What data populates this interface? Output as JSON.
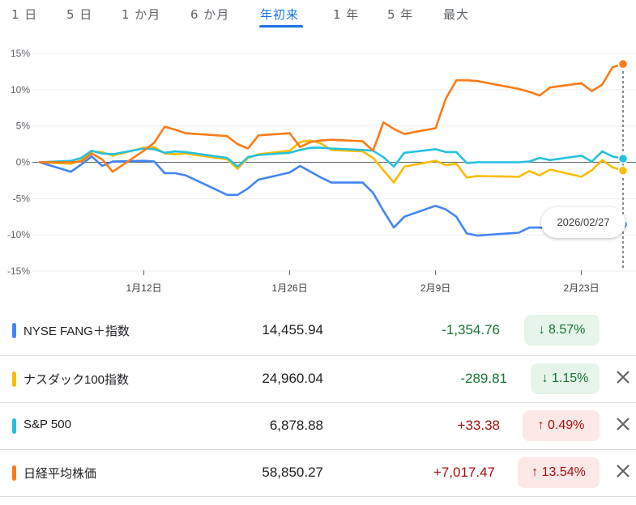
{
  "range_tabs": [
    "1 日",
    "5 日",
    "1 か月",
    "6 か月",
    "年初来",
    "1 年",
    "5 年",
    "最大"
  ],
  "active_tab": "年初来",
  "tooltip_date": "2026/02/27",
  "colors": {
    "NYSE FANG+指数": "#4285f4",
    "ナスダック100指数": "#fbbc04",
    "S&P 500": "#24c1e0",
    "日経平均株価": "#fa7b17",
    "positive": "#137333",
    "negative": "#a50e0e"
  },
  "chart_data": {
    "type": "line",
    "ylabel": "",
    "ylim": [
      -15,
      15
    ],
    "y_ticks": [
      "15%",
      "10%",
      "5%",
      "0%",
      "-5%",
      "-10%",
      "-15%"
    ],
    "x_ticks": [
      "1月12日",
      "1月26日",
      "2月9日",
      "2月23日"
    ],
    "x_dates": [
      "2026-01-02",
      "2026-01-05",
      "2026-01-06",
      "2026-01-07",
      "2026-01-08",
      "2026-01-09",
      "2026-01-12",
      "2026-01-13",
      "2026-01-14",
      "2026-01-15",
      "2026-01-16",
      "2026-01-20",
      "2026-01-21",
      "2026-01-22",
      "2026-01-23",
      "2026-01-26",
      "2026-01-27",
      "2026-01-28",
      "2026-01-29",
      "2026-01-30",
      "2026-02-02",
      "2026-02-03",
      "2026-02-04",
      "2026-02-05",
      "2026-02-06",
      "2026-02-09",
      "2026-02-10",
      "2026-02-11",
      "2026-02-12",
      "2026-02-13",
      "2026-02-17",
      "2026-02-18",
      "2026-02-19",
      "2026-02-20",
      "2026-02-23",
      "2026-02-24",
      "2026-02-25",
      "2026-02-26",
      "2026-02-27"
    ],
    "series": [
      {
        "name": "NYSE FANG+指数",
        "values": [
          0,
          -1.3,
          -0.3,
          0.8,
          -0.5,
          0.1,
          0.2,
          0.1,
          -1.5,
          -1.5,
          -1.8,
          -4.5,
          -4.5,
          -3.6,
          -2.4,
          -1.4,
          -0.5,
          -1.3,
          -2.1,
          -2.8,
          -2.8,
          -4.2,
          -6.7,
          -9.0,
          -7.5,
          -6.0,
          -6.5,
          -7.5,
          -9.8,
          -10.1,
          -9.7,
          -9.0,
          -9.0,
          -9.1,
          -9.4,
          -9.3,
          -9.0,
          -8.6,
          -8.57
        ]
      },
      {
        "name": "ナスダック100指数",
        "values": [
          0,
          -0.2,
          0.3,
          1.5,
          1.4,
          0.9,
          2.0,
          2.1,
          1.2,
          1.1,
          1.2,
          0.4,
          -0.9,
          0.6,
          1.1,
          1.6,
          2.8,
          3.0,
          2.6,
          1.7,
          1.5,
          0.6,
          -1.1,
          -2.8,
          -0.6,
          0.2,
          -0.4,
          -0.2,
          -2.1,
          -1.9,
          -2.0,
          -1.2,
          -1.8,
          -1.0,
          -2.0,
          -1.1,
          0.3,
          -0.7,
          -1.15
        ]
      },
      {
        "name": "S&P 500",
        "values": [
          0,
          0.2,
          0.6,
          1.6,
          1.2,
          1.1,
          1.9,
          1.8,
          1.3,
          1.5,
          1.4,
          0.6,
          -0.6,
          0.7,
          1.0,
          1.3,
          1.7,
          2.0,
          2.0,
          1.9,
          1.7,
          1.6,
          0.7,
          -0.6,
          1.3,
          1.8,
          1.4,
          1.4,
          -0.1,
          0.0,
          0.0,
          0.1,
          0.6,
          0.3,
          0.9,
          0.1,
          1.5,
          0.8,
          0.49
        ]
      },
      {
        "name": "日経平均株価",
        "values": [
          0,
          0,
          0.1,
          1.2,
          0.4,
          -1.3,
          1.6,
          2.7,
          4.9,
          4.5,
          4.0,
          3.6,
          2.5,
          1.9,
          3.7,
          4.0,
          2.1,
          2.8,
          3.0,
          3.1,
          2.9,
          1.6,
          5.5,
          4.6,
          3.9,
          4.7,
          8.8,
          11.3,
          11.3,
          11.2,
          10.1,
          9.7,
          9.2,
          10.3,
          10.9,
          9.8,
          10.7,
          13.1,
          13.54
        ]
      }
    ]
  },
  "rows": [
    {
      "name": "NYSE FANG＋指数",
      "price": "14,455.94",
      "change": "-1,354.76",
      "percent": "8.57%",
      "direction": "down",
      "removable": false
    },
    {
      "name": "ナスダック100指数",
      "price": "24,960.04",
      "change": "-289.81",
      "percent": "1.15%",
      "direction": "down",
      "removable": true
    },
    {
      "name": "S&P 500",
      "price": "6,878.88",
      "change": "+33.38",
      "percent": "0.49%",
      "direction": "up",
      "removable": true
    },
    {
      "name": "日経平均株価",
      "price": "58,850.27",
      "change": "+7,017.47",
      "percent": "13.54%",
      "direction": "up",
      "removable": true
    }
  ],
  "icons": {
    "down_arrow": "arrow-down-icon",
    "up_arrow": "arrow-up-icon",
    "remove": "close-icon"
  }
}
